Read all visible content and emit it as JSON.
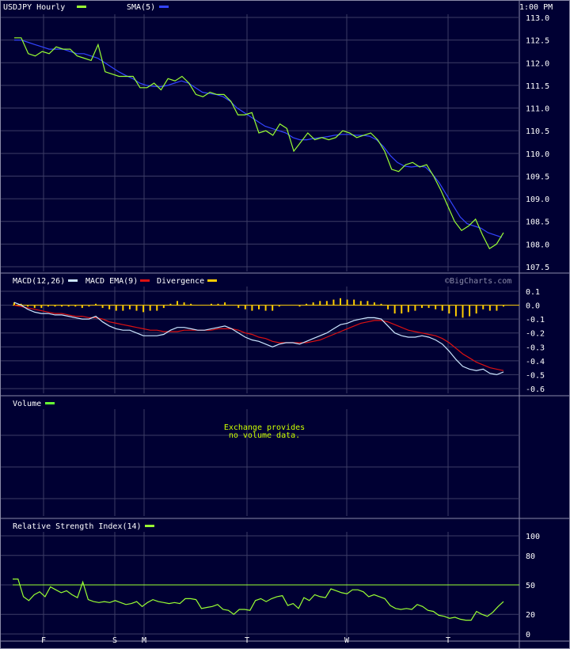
{
  "colors": {
    "background": "#000033",
    "grid": "#3d3d66",
    "border": "#8a8aa8",
    "price": "#99ff33",
    "sma": "#3344ff",
    "macd": "#cce6ff",
    "macd_ema": "#dd1111",
    "divergence": "#ffcc00",
    "volume": "#66ff33",
    "rsi": "#99ff33",
    "rsi_ref": "#99ff33",
    "text": "#ffffff",
    "message": "#ccff00"
  },
  "header": {
    "price_title": "USDJPY Hourly",
    "sma_label": "SMA(5)",
    "time_label": "1:00 PM",
    "macd_title": "MACD(12,26)",
    "macd_ema_label": "MACD EMA(9)",
    "divergence_label": "Divergence",
    "watermark": "©BigCharts.com",
    "volume_title": "Volume",
    "volume_message_line1": "Exchange provides",
    "volume_message_line2": "no volume data.",
    "rsi_title": "Relative Strength Index(14)"
  },
  "x_axis": {
    "day_labels": [
      {
        "label": "F",
        "x": 4
      },
      {
        "label": "S",
        "x": 14
      },
      {
        "label": "M",
        "x": 18
      },
      {
        "label": "T",
        "x": 32
      },
      {
        "label": "W",
        "x": 46
      },
      {
        "label": "T",
        "x": 60
      }
    ]
  },
  "chart_data": [
    {
      "type": "line",
      "title": "USDJPY Hourly",
      "series": [
        {
          "name": "USDJPY Hourly",
          "x_start": 0,
          "values": [
            112.55,
            112.55,
            112.2,
            112.15,
            112.25,
            112.2,
            112.35,
            112.3,
            112.3,
            112.15,
            112.1,
            112.05,
            112.4,
            111.8,
            111.75,
            111.7,
            111.7,
            111.7,
            111.45,
            111.45,
            111.55,
            111.4,
            111.65,
            111.6,
            111.7,
            111.55,
            111.3,
            111.25,
            111.35,
            111.3,
            111.3,
            111.15,
            110.85,
            110.85,
            110.9,
            110.45,
            110.5,
            110.4,
            110.65,
            110.55,
            110.05,
            110.25,
            110.45,
            110.3,
            110.35,
            110.3,
            110.35,
            110.5,
            110.45,
            110.35,
            110.4,
            110.45,
            110.3,
            110.05,
            109.65,
            109.6,
            109.75,
            109.8,
            109.7,
            109.75,
            109.5,
            109.2,
            108.85,
            108.5,
            108.3,
            108.4,
            108.55,
            108.2,
            107.9,
            108.0,
            108.25
          ]
        },
        {
          "name": "SMA(5)",
          "x_start": 0,
          "values": [
            112.5,
            112.5,
            112.45,
            112.4,
            112.35,
            112.3,
            112.3,
            112.3,
            112.25,
            112.2,
            112.2,
            112.15,
            112.1,
            112.0,
            111.9,
            111.8,
            111.72,
            111.65,
            111.55,
            111.5,
            111.48,
            111.47,
            111.5,
            111.55,
            111.6,
            111.55,
            111.45,
            111.35,
            111.32,
            111.3,
            111.25,
            111.15,
            111.0,
            110.9,
            110.8,
            110.7,
            110.6,
            110.55,
            110.5,
            110.45,
            110.35,
            110.3,
            110.3,
            110.33,
            110.35,
            110.37,
            110.4,
            110.42,
            110.42,
            110.4,
            110.4,
            110.38,
            110.3,
            110.15,
            109.95,
            109.8,
            109.72,
            109.7,
            109.72,
            109.7,
            109.55,
            109.35,
            109.1,
            108.85,
            108.6,
            108.45,
            108.4,
            108.35,
            108.25,
            108.2,
            108.15
          ]
        }
      ],
      "ylim": [
        107.5,
        113.0
      ],
      "yticks": [
        "107.5",
        "108.0",
        "108.5",
        "109.0",
        "109.5",
        "110.0",
        "110.5",
        "111.0",
        "111.5",
        "112.0",
        "112.5",
        "113.0"
      ],
      "grid": true
    },
    {
      "type": "line",
      "title": "MACD(12,26)",
      "series": [
        {
          "name": "MACD(12,26)",
          "x_start": 0,
          "values": [
            0.02,
            0.0,
            -0.03,
            -0.05,
            -0.06,
            -0.06,
            -0.07,
            -0.07,
            -0.08,
            -0.09,
            -0.1,
            -0.1,
            -0.08,
            -0.12,
            -0.15,
            -0.17,
            -0.18,
            -0.18,
            -0.2,
            -0.22,
            -0.22,
            -0.22,
            -0.21,
            -0.18,
            -0.16,
            -0.16,
            -0.17,
            -0.18,
            -0.18,
            -0.17,
            -0.16,
            -0.15,
            -0.17,
            -0.2,
            -0.23,
            -0.25,
            -0.26,
            -0.28,
            -0.3,
            -0.28,
            -0.27,
            -0.27,
            -0.28,
            -0.26,
            -0.24,
            -0.22,
            -0.2,
            -0.17,
            -0.14,
            -0.13,
            -0.11,
            -0.1,
            -0.09,
            -0.09,
            -0.1,
            -0.15,
            -0.2,
            -0.22,
            -0.23,
            -0.23,
            -0.22,
            -0.23,
            -0.25,
            -0.28,
            -0.33,
            -0.39,
            -0.44,
            -0.46,
            -0.47,
            -0.46,
            -0.49,
            -0.5,
            -0.48
          ]
        },
        {
          "name": "MACD EMA(9)",
          "x_start": 0,
          "values": [
            -0.0,
            -0.01,
            -0.02,
            -0.03,
            -0.04,
            -0.05,
            -0.06,
            -0.06,
            -0.07,
            -0.08,
            -0.08,
            -0.09,
            -0.09,
            -0.1,
            -0.12,
            -0.13,
            -0.14,
            -0.15,
            -0.16,
            -0.17,
            -0.18,
            -0.18,
            -0.19,
            -0.19,
            -0.19,
            -0.18,
            -0.18,
            -0.18,
            -0.18,
            -0.18,
            -0.17,
            -0.17,
            -0.17,
            -0.18,
            -0.2,
            -0.21,
            -0.23,
            -0.24,
            -0.26,
            -0.27,
            -0.27,
            -0.27,
            -0.27,
            -0.27,
            -0.26,
            -0.25,
            -0.23,
            -0.21,
            -0.19,
            -0.17,
            -0.15,
            -0.13,
            -0.12,
            -0.11,
            -0.11,
            -0.12,
            -0.14,
            -0.16,
            -0.18,
            -0.19,
            -0.2,
            -0.21,
            -0.22,
            -0.24,
            -0.27,
            -0.31,
            -0.35,
            -0.38,
            -0.41,
            -0.43,
            -0.45,
            -0.46,
            -0.47
          ]
        },
        {
          "name": "Divergence",
          "type": "bar",
          "x_start": 0,
          "values": [
            0.02,
            0.01,
            -0.01,
            -0.02,
            -0.02,
            -0.01,
            -0.01,
            -0.01,
            -0.01,
            -0.01,
            -0.02,
            -0.01,
            0.01,
            -0.02,
            -0.03,
            -0.04,
            -0.04,
            -0.03,
            -0.04,
            -0.05,
            -0.04,
            -0.04,
            -0.02,
            0.01,
            0.03,
            0.02,
            0.01,
            0.0,
            0.0,
            0.01,
            0.01,
            0.02,
            0.0,
            -0.02,
            -0.03,
            -0.04,
            -0.03,
            -0.04,
            -0.04,
            -0.01,
            0.0,
            0.0,
            -0.01,
            0.01,
            0.02,
            0.03,
            0.03,
            0.04,
            0.05,
            0.04,
            0.04,
            0.03,
            0.03,
            0.02,
            0.01,
            -0.03,
            -0.06,
            -0.06,
            -0.05,
            -0.04,
            -0.02,
            -0.02,
            -0.03,
            -0.04,
            -0.06,
            -0.08,
            -0.09,
            -0.08,
            -0.06,
            -0.03,
            -0.04,
            -0.04,
            -0.01
          ]
        }
      ],
      "ylim": [
        -0.6,
        0.1
      ],
      "yticks": [
        "-0.6",
        "-0.5",
        "-0.4",
        "-0.3",
        "-0.2",
        "-0.1",
        "0.0",
        "0.1"
      ],
      "grid": true
    },
    {
      "type": "bar",
      "title": "Volume",
      "series": [
        {
          "name": "Volume",
          "values": []
        }
      ],
      "grid": true
    },
    {
      "type": "line",
      "title": "Relative Strength Index(14)",
      "series": [
        {
          "name": "Relative Strength Index(14)",
          "x_start": 0,
          "values": [
            56,
            56,
            38,
            34,
            40,
            43,
            38,
            48,
            45,
            42,
            44,
            40,
            37,
            53,
            35,
            33,
            32,
            33,
            32,
            34,
            32,
            30,
            31,
            33,
            28,
            32,
            35,
            33,
            32,
            31,
            32,
            31,
            36,
            36,
            35,
            26,
            27,
            28,
            30,
            25,
            24,
            20,
            25,
            25,
            24,
            34,
            36,
            33,
            36,
            38,
            39,
            29,
            31,
            26,
            37,
            34,
            40,
            38,
            37,
            46,
            44,
            42,
            41,
            45,
            45,
            43,
            38,
            40,
            38,
            36,
            29,
            26,
            25,
            26,
            25,
            30,
            28,
            24,
            23,
            19,
            18,
            16,
            17,
            15,
            14,
            14,
            23,
            20,
            18,
            22,
            28,
            33
          ]
        }
      ],
      "reference_line": 50,
      "ylim": [
        0,
        100
      ],
      "yticks": [
        "0",
        "20",
        "50",
        "80",
        "100"
      ],
      "grid": true
    }
  ]
}
